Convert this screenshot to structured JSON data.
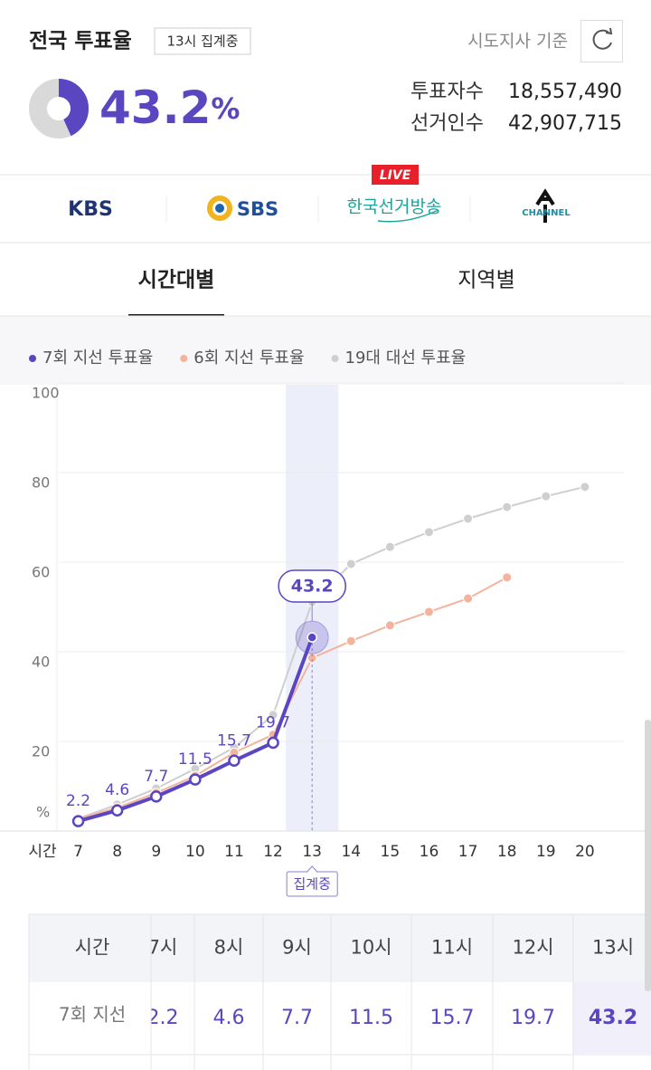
{
  "header": {
    "title": "전국 투표율",
    "badge": "13시 집계중",
    "basis": "시도지사 기준"
  },
  "turnout": {
    "value": 43.2,
    "unit": "%"
  },
  "stats": [
    {
      "label": "투표자수",
      "value": "18,557,490"
    },
    {
      "label": "선거인수",
      "value": "42,907,715"
    }
  ],
  "broadcasters": {
    "live": "LIVE",
    "names": [
      "KBS",
      "SBS",
      "한국선거방송",
      "CHANNEL"
    ]
  },
  "tabs": [
    "시간대별",
    "지역별"
  ],
  "chart_data": {
    "type": "line",
    "x": [
      7,
      8,
      9,
      10,
      11,
      12,
      13,
      14,
      15,
      16,
      17,
      18,
      19,
      20
    ],
    "xlabel": "시간",
    "ylabel": "%",
    "xlim": [
      6.5,
      21
    ],
    "ylim": [
      0,
      100
    ],
    "yticks": [
      20,
      40,
      60,
      80,
      100
    ],
    "grid": true,
    "annotation": {
      "text": "집계중",
      "x": 13
    },
    "series": [
      {
        "name": "19대 대선 투표율",
        "color": "#cfcfcf",
        "values": [
          2.8,
          5.9,
          9.5,
          13.9,
          18.6,
          25.9,
          51.1,
          59.6,
          63.4,
          66.7,
          69.7,
          72.3,
          74.7,
          76.8
        ]
      },
      {
        "name": "6회 지선 투표율",
        "color": "#f3b39c",
        "values": [
          2.7,
          5.2,
          8.5,
          12.3,
          17.5,
          21.5,
          38.6,
          42.4,
          45.9,
          48.9,
          51.9,
          56.6,
          null,
          null
        ]
      },
      {
        "name": "7회 지선 투표율",
        "color": "#5a46c0",
        "values": [
          2.2,
          4.6,
          7.7,
          11.5,
          15.7,
          19.7,
          43.2,
          null,
          null,
          null,
          null,
          null,
          null,
          null
        ]
      }
    ]
  },
  "table": {
    "columns": [
      "시간",
      "7시",
      "8시",
      "9시",
      "10시",
      "11시",
      "12시",
      "13시"
    ],
    "row_label": "7회 지선"
  }
}
